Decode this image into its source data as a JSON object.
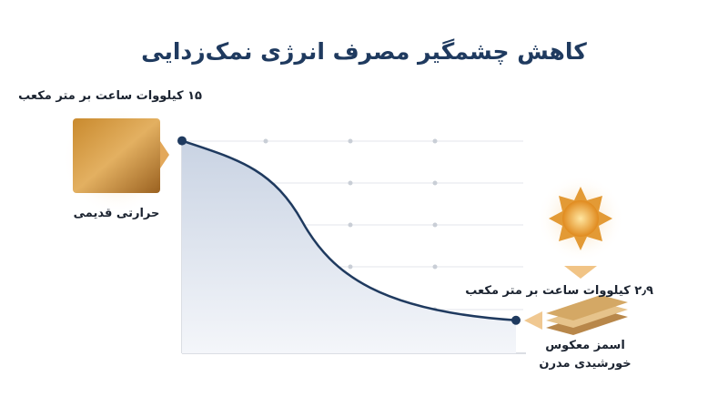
{
  "chart_data": {
    "type": "line",
    "title": "کاهش چشمگیر مصرف انرژی نمک‌زدایی",
    "categories": [
      "حرارتی قدیمی",
      "اسمز معکوس خورشیدی مدرن"
    ],
    "values": [
      15,
      2.9
    ],
    "value_labels": [
      "۱۵ کیلووات ساعت بر متر مکعب",
      "۲٫۹ کیلووات ساعت بر متر مکعب"
    ],
    "color": "#1f3a5f",
    "ylim": [
      0,
      17
    ]
  }
}
